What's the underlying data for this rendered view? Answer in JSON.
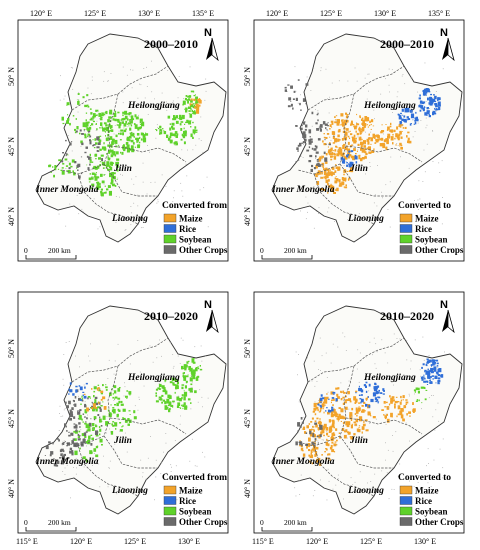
{
  "panels": [
    {
      "period": "2000–2010",
      "legend_title": "Converted from",
      "top_ticks": [
        "120° E",
        "125° E",
        "130° E",
        "135° E"
      ],
      "bottom_ticks": [],
      "y_ticks": [
        "50° N",
        "45° N",
        "40° N"
      ],
      "patches": [
        {
          "color": "#5fd22a",
          "cx": 0.46,
          "cy": 0.46,
          "rx": 0.15,
          "ry": 0.09,
          "n": 200
        },
        {
          "color": "#5fd22a",
          "cx": 0.4,
          "cy": 0.62,
          "rx": 0.08,
          "ry": 0.1,
          "n": 110
        },
        {
          "color": "#5fd22a",
          "cx": 0.75,
          "cy": 0.45,
          "rx": 0.1,
          "ry": 0.06,
          "n": 80
        },
        {
          "color": "#5fd22a",
          "cx": 0.82,
          "cy": 0.34,
          "rx": 0.04,
          "ry": 0.05,
          "n": 40
        },
        {
          "color": "#5fd22a",
          "cx": 0.3,
          "cy": 0.4,
          "rx": 0.1,
          "ry": 0.1,
          "n": 40
        },
        {
          "color": "#5fd22a",
          "cx": 0.2,
          "cy": 0.6,
          "rx": 0.08,
          "ry": 0.05,
          "n": 25
        },
        {
          "color": "#f2a32a",
          "cx": 0.84,
          "cy": 0.34,
          "rx": 0.03,
          "ry": 0.03,
          "n": 18
        },
        {
          "color": "#6a6a6a",
          "cx": 0.3,
          "cy": 0.55,
          "rx": 0.1,
          "ry": 0.1,
          "n": 40
        }
      ]
    },
    {
      "period": "2000–2010",
      "legend_title": "Converted to",
      "top_ticks": [
        "120° E",
        "125° E",
        "130° E",
        "135° E"
      ],
      "bottom_ticks": [],
      "y_ticks": [
        "50° N",
        "45° N",
        "40° N"
      ],
      "patches": [
        {
          "color": "#f2a32a",
          "cx": 0.46,
          "cy": 0.48,
          "rx": 0.14,
          "ry": 0.1,
          "n": 200
        },
        {
          "color": "#f2a32a",
          "cx": 0.37,
          "cy": 0.62,
          "rx": 0.09,
          "ry": 0.1,
          "n": 120
        },
        {
          "color": "#f2a32a",
          "cx": 0.66,
          "cy": 0.48,
          "rx": 0.09,
          "ry": 0.06,
          "n": 60
        },
        {
          "color": "#2f6ed8",
          "cx": 0.83,
          "cy": 0.34,
          "rx": 0.05,
          "ry": 0.06,
          "n": 70
        },
        {
          "color": "#2f6ed8",
          "cx": 0.73,
          "cy": 0.4,
          "rx": 0.05,
          "ry": 0.04,
          "n": 35
        },
        {
          "color": "#2f6ed8",
          "cx": 0.45,
          "cy": 0.57,
          "rx": 0.04,
          "ry": 0.04,
          "n": 18
        },
        {
          "color": "#6a6a6a",
          "cx": 0.28,
          "cy": 0.5,
          "rx": 0.1,
          "ry": 0.12,
          "n": 70
        },
        {
          "color": "#6a6a6a",
          "cx": 0.2,
          "cy": 0.3,
          "rx": 0.06,
          "ry": 0.08,
          "n": 20
        }
      ]
    },
    {
      "period": "2010–2020",
      "legend_title": "Converted from",
      "top_ticks": [],
      "bottom_ticks": [
        "115° E",
        "120° E",
        "125° E",
        "130° E"
      ],
      "y_ticks": [
        "50° N",
        "45° N",
        "40° N"
      ],
      "patches": [
        {
          "color": "#5fd22a",
          "cx": 0.42,
          "cy": 0.48,
          "rx": 0.15,
          "ry": 0.1,
          "n": 110
        },
        {
          "color": "#5fd22a",
          "cx": 0.74,
          "cy": 0.42,
          "rx": 0.1,
          "ry": 0.07,
          "n": 80
        },
        {
          "color": "#5fd22a",
          "cx": 0.82,
          "cy": 0.32,
          "rx": 0.05,
          "ry": 0.05,
          "n": 40
        },
        {
          "color": "#5fd22a",
          "cx": 0.33,
          "cy": 0.62,
          "rx": 0.08,
          "ry": 0.08,
          "n": 40
        },
        {
          "color": "#6a6a6a",
          "cx": 0.3,
          "cy": 0.52,
          "rx": 0.1,
          "ry": 0.12,
          "n": 80
        },
        {
          "color": "#6a6a6a",
          "cx": 0.2,
          "cy": 0.66,
          "rx": 0.08,
          "ry": 0.06,
          "n": 35
        },
        {
          "color": "#2f6ed8",
          "cx": 0.28,
          "cy": 0.4,
          "rx": 0.05,
          "ry": 0.05,
          "n": 15
        },
        {
          "color": "#f2a32a",
          "cx": 0.36,
          "cy": 0.45,
          "rx": 0.06,
          "ry": 0.06,
          "n": 14
        }
      ]
    },
    {
      "period": "2010–2020",
      "legend_title": "Converted to",
      "top_ticks": [],
      "bottom_ticks": [
        "115° E",
        "120° E",
        "125° E",
        "130° E"
      ],
      "y_ticks": [
        "50° N",
        "45° N",
        "40° N"
      ],
      "patches": [
        {
          "color": "#f2a32a",
          "cx": 0.42,
          "cy": 0.5,
          "rx": 0.15,
          "ry": 0.11,
          "n": 180
        },
        {
          "color": "#f2a32a",
          "cx": 0.3,
          "cy": 0.62,
          "rx": 0.1,
          "ry": 0.09,
          "n": 100
        },
        {
          "color": "#f2a32a",
          "cx": 0.68,
          "cy": 0.48,
          "rx": 0.08,
          "ry": 0.06,
          "n": 50
        },
        {
          "color": "#2f6ed8",
          "cx": 0.84,
          "cy": 0.33,
          "rx": 0.05,
          "ry": 0.06,
          "n": 70
        },
        {
          "color": "#2f6ed8",
          "cx": 0.55,
          "cy": 0.42,
          "rx": 0.07,
          "ry": 0.05,
          "n": 45
        },
        {
          "color": "#2f6ed8",
          "cx": 0.35,
          "cy": 0.45,
          "rx": 0.05,
          "ry": 0.05,
          "n": 20
        },
        {
          "color": "#6a6a6a",
          "cx": 0.25,
          "cy": 0.58,
          "rx": 0.07,
          "ry": 0.07,
          "n": 25
        },
        {
          "color": "#5fd22a",
          "cx": 0.78,
          "cy": 0.42,
          "rx": 0.05,
          "ry": 0.04,
          "n": 15
        }
      ]
    }
  ],
  "legend_items": [
    {
      "label": "Maize",
      "color": "#f2a32a"
    },
    {
      "label": "Rice",
      "color": "#2f6ed8"
    },
    {
      "label": "Soybean",
      "color": "#5fd22a"
    },
    {
      "label": "Other Crops",
      "color": "#6a6a6a"
    }
  ],
  "regions": {
    "heilongjiang": "Heilongjiang",
    "jilin": "Jilin",
    "inner_mongolia": "Inner Mongolia",
    "liaoning": "Liaoning"
  },
  "scale_bar": {
    "zero": "0",
    "dist": "200 km"
  },
  "north_label": "N"
}
